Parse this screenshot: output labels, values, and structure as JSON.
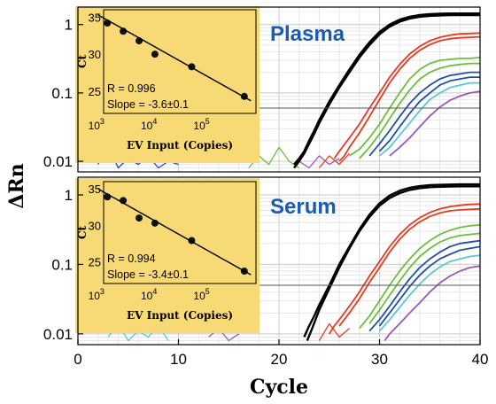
{
  "chart_data": [
    {
      "type": "line",
      "panel_label": "Plasma",
      "x_axis": {
        "label": "Cycle",
        "range": [
          0,
          40
        ],
        "ticks": [
          0,
          10,
          20,
          30,
          40
        ]
      },
      "y_axis": {
        "label": "ΔRn",
        "scale": "log",
        "range": [
          0.007,
          1.8
        ],
        "tick_labels": [
          "0.01",
          "0.1",
          "1"
        ]
      },
      "threshold": 0.06,
      "grid": true,
      "series": [
        {
          "color": "#000000",
          "x": [
            21.5,
            22,
            22.5,
            23,
            23.5,
            24,
            25,
            26,
            27,
            28,
            29,
            30,
            31,
            32,
            33,
            34,
            35,
            36,
            37,
            38,
            39,
            40
          ],
          "y": [
            0.009,
            0.011,
            0.014,
            0.02,
            0.028,
            0.04,
            0.075,
            0.13,
            0.22,
            0.36,
            0.55,
            0.78,
            1.0,
            1.18,
            1.3,
            1.38,
            1.42,
            1.44,
            1.45,
            1.45,
            1.45,
            1.45
          ]
        },
        {
          "color": "#000000",
          "x": [
            21.5,
            22,
            22.5,
            23,
            23.5,
            24,
            25,
            26,
            27,
            28,
            29,
            30,
            31,
            32,
            33,
            34,
            35,
            36,
            37,
            38,
            39,
            40
          ],
          "y": [
            0.008,
            0.01,
            0.013,
            0.018,
            0.025,
            0.036,
            0.068,
            0.12,
            0.2,
            0.33,
            0.5,
            0.72,
            0.93,
            1.1,
            1.22,
            1.3,
            1.34,
            1.36,
            1.37,
            1.37,
            1.37,
            1.37
          ]
        },
        {
          "color": "#e83a20",
          "x": [
            25.5,
            26,
            27,
            28,
            29,
            30,
            31,
            32,
            33,
            34,
            35,
            36,
            37,
            38,
            39,
            40
          ],
          "y": [
            0.011,
            0.014,
            0.022,
            0.035,
            0.06,
            0.1,
            0.17,
            0.26,
            0.37,
            0.48,
            0.58,
            0.65,
            0.7,
            0.73,
            0.74,
            0.75
          ]
        },
        {
          "color": "#e83a20",
          "x": [
            26,
            26.5,
            27,
            28,
            29,
            30,
            31,
            32,
            33,
            34,
            35,
            36,
            37,
            38,
            39,
            40
          ],
          "y": [
            0.01,
            0.012,
            0.016,
            0.026,
            0.045,
            0.08,
            0.14,
            0.22,
            0.32,
            0.42,
            0.51,
            0.58,
            0.62,
            0.64,
            0.65,
            0.66
          ]
        },
        {
          "color": "#6cbf3a",
          "x": [
            27,
            28,
            29,
            30,
            31,
            32,
            33,
            34,
            35,
            36,
            37,
            38,
            39,
            40
          ],
          "y": [
            0.012,
            0.015,
            0.022,
            0.035,
            0.06,
            0.1,
            0.16,
            0.22,
            0.27,
            0.3,
            0.31,
            0.32,
            0.32,
            0.33
          ]
        },
        {
          "color": "#6cbf3a",
          "x": [
            28,
            29,
            30,
            31,
            32,
            33,
            34,
            35,
            36,
            37,
            38,
            39,
            40
          ],
          "y": [
            0.011,
            0.016,
            0.025,
            0.042,
            0.07,
            0.11,
            0.16,
            0.2,
            0.23,
            0.25,
            0.26,
            0.27,
            0.27
          ]
        },
        {
          "color": "#1f4fa8",
          "x": [
            29,
            30,
            31,
            32,
            33,
            34,
            35,
            36,
            37,
            38,
            39,
            40
          ],
          "y": [
            0.012,
            0.018,
            0.028,
            0.045,
            0.07,
            0.1,
            0.13,
            0.16,
            0.18,
            0.19,
            0.2,
            0.2
          ]
        },
        {
          "color": "#1f4fa8",
          "x": [
            30,
            31,
            32,
            33,
            34,
            35,
            36,
            37,
            38,
            39,
            40
          ],
          "y": [
            0.014,
            0.02,
            0.032,
            0.05,
            0.075,
            0.1,
            0.13,
            0.15,
            0.16,
            0.17,
            0.17
          ]
        },
        {
          "color": "#5bc8d6",
          "x": [
            30,
            31,
            32,
            33,
            34,
            35,
            36,
            37,
            38,
            39,
            40
          ],
          "y": [
            0.012,
            0.016,
            0.024,
            0.036,
            0.055,
            0.08,
            0.1,
            0.12,
            0.13,
            0.14,
            0.14
          ]
        },
        {
          "color": "#9b59b6",
          "x": [
            31,
            32,
            33,
            34,
            35,
            36,
            37,
            38,
            39,
            40
          ],
          "y": [
            0.012,
            0.016,
            0.022,
            0.032,
            0.046,
            0.062,
            0.078,
            0.09,
            0.1,
            0.105
          ]
        }
      ],
      "noise": [
        {
          "color": "#1f4fa8",
          "x": [
            2,
            3,
            4,
            5,
            6,
            7,
            8,
            9,
            10
          ],
          "y": [
            0.009,
            0.017,
            0.008,
            0.011,
            0.009,
            0.012,
            0.008,
            0.01,
            0.009
          ]
        },
        {
          "color": "#6cbf3a",
          "x": [
            17,
            18,
            19,
            20,
            21,
            22
          ],
          "y": [
            0.008,
            0.012,
            0.009,
            0.016,
            0.01,
            0.008
          ]
        },
        {
          "color": "#e83a20",
          "x": [
            24,
            25,
            26,
            27
          ],
          "y": [
            0.008,
            0.012,
            0.009,
            0.013
          ]
        },
        {
          "color": "#9b59b6",
          "x": [
            22,
            23,
            24,
            25,
            26
          ],
          "y": [
            0.01,
            0.008,
            0.012,
            0.009,
            0.011
          ]
        }
      ],
      "inset": {
        "type": "scatter",
        "x_label": "EV Input (Copies)",
        "y_label": "Ct",
        "x_scale": "log",
        "x_range": [
          800,
          1000000
        ],
        "y_range": [
          22,
          36
        ],
        "y_ticks": [
          "25",
          "30",
          "35"
        ],
        "points": [
          {
            "x": 1500,
            "y": 34.2
          },
          {
            "x": 3000,
            "y": 33.1
          },
          {
            "x": 6000,
            "y": 31.8
          },
          {
            "x": 12000,
            "y": 30.0
          },
          {
            "x": 60000,
            "y": 28.3
          },
          {
            "x": 600000,
            "y": 24.3
          }
        ],
        "fit": {
          "x": [
            1000,
            800000
          ],
          "y": [
            35.3,
            23.7
          ]
        },
        "r_text": "R = 0.996",
        "slope_text": "Slope = -3.6±0.1"
      }
    },
    {
      "type": "line",
      "panel_label": "Serum",
      "x_axis": {
        "label": "Cycle",
        "range": [
          0,
          40
        ],
        "ticks": [
          0,
          10,
          20,
          30,
          40
        ]
      },
      "y_axis": {
        "label": "ΔRn",
        "scale": "log",
        "range": [
          0.007,
          1.8
        ],
        "tick_labels": [
          "0.01",
          "0.1",
          "1"
        ]
      },
      "threshold": 0.05,
      "grid": true,
      "series": [
        {
          "color": "#000000",
          "x": [
            22.5,
            23,
            23.5,
            24,
            25,
            26,
            27,
            28,
            29,
            30,
            31,
            32,
            33,
            34,
            35,
            36,
            37,
            38,
            39,
            40
          ],
          "y": [
            0.009,
            0.013,
            0.018,
            0.026,
            0.05,
            0.1,
            0.18,
            0.32,
            0.52,
            0.76,
            0.98,
            1.15,
            1.27,
            1.34,
            1.38,
            1.4,
            1.41,
            1.42,
            1.42,
            1.42
          ]
        },
        {
          "color": "#000000",
          "x": [
            22.8,
            23.3,
            24,
            25,
            26,
            27,
            28,
            29,
            30,
            31,
            32,
            33,
            34,
            35,
            36,
            37,
            38,
            39,
            40
          ],
          "y": [
            0.008,
            0.012,
            0.022,
            0.045,
            0.09,
            0.17,
            0.3,
            0.48,
            0.7,
            0.9,
            1.06,
            1.18,
            1.25,
            1.29,
            1.31,
            1.32,
            1.33,
            1.33,
            1.33
          ]
        },
        {
          "color": "#e83a20",
          "x": [
            25,
            25.5,
            26,
            27,
            28,
            29,
            30,
            31,
            32,
            33,
            34,
            35,
            36,
            37,
            38,
            39,
            40
          ],
          "y": [
            0.01,
            0.013,
            0.016,
            0.025,
            0.04,
            0.068,
            0.11,
            0.18,
            0.27,
            0.37,
            0.47,
            0.56,
            0.63,
            0.68,
            0.71,
            0.73,
            0.74
          ]
        },
        {
          "color": "#e83a20",
          "x": [
            26,
            27,
            28,
            29,
            30,
            31,
            32,
            33,
            34,
            35,
            36,
            37,
            38,
            39,
            40
          ],
          "y": [
            0.013,
            0.02,
            0.032,
            0.055,
            0.09,
            0.15,
            0.23,
            0.32,
            0.41,
            0.49,
            0.55,
            0.59,
            0.61,
            0.62,
            0.63
          ]
        },
        {
          "color": "#6cbf3a",
          "x": [
            28,
            29,
            30,
            31,
            32,
            33,
            34,
            35,
            36,
            37,
            38,
            39,
            40
          ],
          "y": [
            0.012,
            0.018,
            0.03,
            0.05,
            0.08,
            0.12,
            0.17,
            0.22,
            0.27,
            0.31,
            0.34,
            0.36,
            0.37
          ]
        },
        {
          "color": "#6cbf3a",
          "x": [
            29,
            30,
            31,
            32,
            33,
            34,
            35,
            36,
            37,
            38,
            39,
            40
          ],
          "y": [
            0.014,
            0.022,
            0.036,
            0.058,
            0.09,
            0.13,
            0.17,
            0.21,
            0.24,
            0.26,
            0.27,
            0.28
          ]
        },
        {
          "color": "#1f4fa8",
          "x": [
            29,
            30,
            31,
            32,
            33,
            34,
            35,
            36,
            37,
            38,
            39,
            40
          ],
          "y": [
            0.011,
            0.016,
            0.025,
            0.04,
            0.062,
            0.09,
            0.12,
            0.15,
            0.18,
            0.2,
            0.21,
            0.22
          ]
        },
        {
          "color": "#1f4fa8",
          "x": [
            30,
            31,
            32,
            33,
            34,
            35,
            36,
            37,
            38,
            39,
            40
          ],
          "y": [
            0.013,
            0.02,
            0.031,
            0.048,
            0.07,
            0.095,
            0.12,
            0.14,
            0.16,
            0.17,
            0.18
          ]
        },
        {
          "color": "#5bc8d6",
          "x": [
            30,
            31,
            32,
            33,
            34,
            35,
            36,
            37,
            38,
            39,
            40
          ],
          "y": [
            0.011,
            0.016,
            0.024,
            0.036,
            0.052,
            0.072,
            0.092,
            0.11,
            0.12,
            0.13,
            0.135
          ]
        },
        {
          "color": "#9b59b6",
          "x": [
            30.5,
            31,
            32,
            33,
            34,
            35,
            36,
            37,
            38,
            39,
            40
          ],
          "y": [
            0.008,
            0.01,
            0.014,
            0.02,
            0.028,
            0.04,
            0.054,
            0.068,
            0.08,
            0.09,
            0.095
          ]
        }
      ],
      "noise": [
        {
          "color": "#5bc8d6",
          "x": [
            3,
            4,
            5,
            6,
            7,
            8,
            9
          ],
          "y": [
            0.009,
            0.014,
            0.008,
            0.011,
            0.009,
            0.013,
            0.008
          ]
        },
        {
          "color": "#e83a20",
          "x": [
            24,
            25,
            26,
            27
          ],
          "y": [
            0.008,
            0.014,
            0.009,
            0.012
          ]
        },
        {
          "color": "#9b59b6",
          "x": [
            13,
            14,
            15,
            16
          ],
          "y": [
            0.009,
            0.012,
            0.008,
            0.01
          ]
        }
      ],
      "inset": {
        "type": "scatter",
        "x_label": "EV Input (Copies)",
        "y_label": "Ct",
        "x_scale": "log",
        "x_range": [
          800,
          1000000
        ],
        "y_range": [
          22,
          36
        ],
        "y_ticks": [
          "25",
          "30",
          "35"
        ],
        "points": [
          {
            "x": 1500,
            "y": 33.9
          },
          {
            "x": 3000,
            "y": 33.4
          },
          {
            "x": 6000,
            "y": 31.0
          },
          {
            "x": 12000,
            "y": 30.3
          },
          {
            "x": 60000,
            "y": 27.9
          },
          {
            "x": 600000,
            "y": 23.7
          }
        ],
        "fit": {
          "x": [
            1000,
            800000
          ],
          "y": [
            35.0,
            23.2
          ]
        },
        "r_text": "R = 0.994",
        "slope_text": "Slope = -3.4±0.1"
      }
    }
  ]
}
